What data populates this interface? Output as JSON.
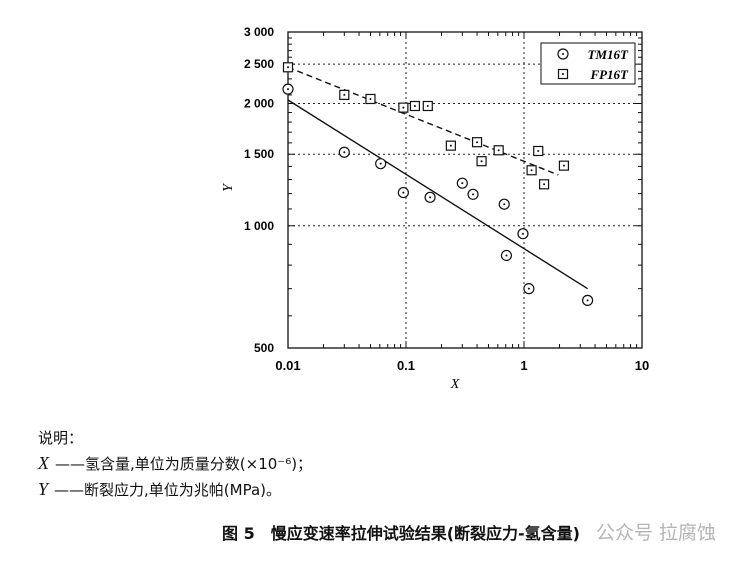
{
  "chart_data": {
    "type": "scatter",
    "xlabel": "X",
    "ylabel": "Y",
    "xscale": "log",
    "yscale": "log",
    "xlim": [
      0.01,
      10
    ],
    "ylim": [
      500,
      3000
    ],
    "xticks": [
      0.01,
      0.1,
      1,
      10
    ],
    "xtick_labels": [
      "0.01",
      "0.1",
      "1",
      "10"
    ],
    "yticks": [
      500,
      1000,
      1500,
      2000,
      2500,
      3000
    ],
    "ytick_labels": [
      "500",
      "1 000",
      "1 500",
      "2 000",
      "2 500",
      "3 000"
    ],
    "grid": "dotted",
    "legend_position": "top-right",
    "series": [
      {
        "name": "TM16T",
        "marker": "circle-dot",
        "x": [
          0.01,
          0.03,
          0.061,
          0.095,
          0.16,
          0.3,
          0.37,
          0.68,
          0.98,
          0.71,
          1.1,
          3.46
        ],
        "y": [
          2170,
          1517,
          1422,
          1207,
          1175,
          1273,
          1195,
          1130,
          956,
          845,
          700,
          655
        ],
        "fit_line": {
          "style": "solid",
          "x": [
            0.01,
            3.46
          ],
          "y": [
            2040,
            700
          ]
        }
      },
      {
        "name": "FP16T",
        "marker": "square-dot",
        "x": [
          0.01,
          0.03,
          0.05,
          0.095,
          0.119,
          0.153,
          0.24,
          0.4,
          0.437,
          0.61,
          1.16,
          1.32,
          1.48,
          2.18
        ],
        "y": [
          2456,
          2100,
          2052,
          1954,
          1972,
          1972,
          1575,
          1606,
          1442,
          1534,
          1370,
          1528,
          1265,
          1406
        ],
        "fit_line": {
          "style": "dashed",
          "x": [
            0.01,
            1.95
          ],
          "y": [
            2456,
            1334
          ]
        }
      }
    ]
  },
  "notes": {
    "heading": "说明：",
    "x_symbol": "X",
    "x_desc": "——氢含量,单位为质量分数(×10⁻⁶)；",
    "y_symbol": "Y",
    "y_desc": "——断裂应力,单位为兆帕(MPa)。"
  },
  "caption": "图 5　慢应变速率拉伸试验结果(断裂应力-氢含量)",
  "watermark": "公众号 拉腐蚀"
}
